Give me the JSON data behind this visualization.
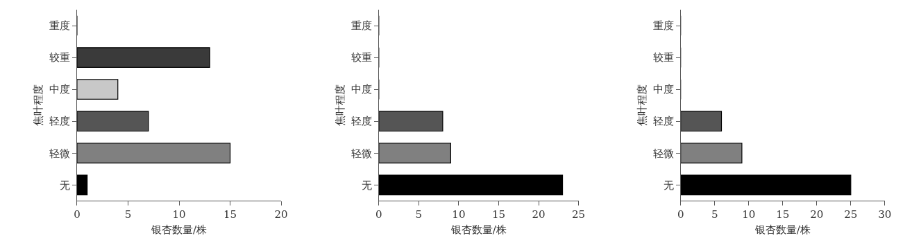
{
  "chart_data": [
    {
      "type": "bar",
      "orientation": "horizontal",
      "xlabel": "银杏数量/株",
      "ylabel": "焦叶程度",
      "categories": [
        "重度",
        "较重",
        "中度",
        "轻度",
        "轻微",
        "无"
      ],
      "values": [
        0,
        13,
        4,
        7,
        15,
        1
      ],
      "colors": [
        "#000000",
        "#3a3a3a",
        "#c8c8c8",
        "#555555",
        "#808080",
        "#000000"
      ],
      "xlim": [
        0,
        20
      ],
      "xticks": [
        0,
        5,
        10,
        15,
        20
      ]
    },
    {
      "type": "bar",
      "orientation": "horizontal",
      "xlabel": "银杏数量/株",
      "ylabel": "焦叶程度",
      "categories": [
        "重度",
        "较重",
        "中度",
        "轻度",
        "轻微",
        "无"
      ],
      "values": [
        0,
        0,
        0,
        8,
        9,
        23
      ],
      "colors": [
        "#000000",
        "#3a3a3a",
        "#c8c8c8",
        "#555555",
        "#808080",
        "#000000"
      ],
      "xlim": [
        0,
        25
      ],
      "xticks": [
        0,
        5,
        10,
        15,
        20,
        25
      ]
    },
    {
      "type": "bar",
      "orientation": "horizontal",
      "xlabel": "银杏数量/株",
      "ylabel": "焦叶程度",
      "categories": [
        "重度",
        "较重",
        "中度",
        "轻度",
        "轻微",
        "无"
      ],
      "values": [
        0,
        0,
        0,
        6,
        9,
        25
      ],
      "colors": [
        "#000000",
        "#3a3a3a",
        "#c8c8c8",
        "#555555",
        "#808080",
        "#000000"
      ],
      "xlim": [
        0,
        30
      ],
      "xticks": [
        0,
        5,
        10,
        15,
        20,
        25,
        30
      ]
    }
  ]
}
